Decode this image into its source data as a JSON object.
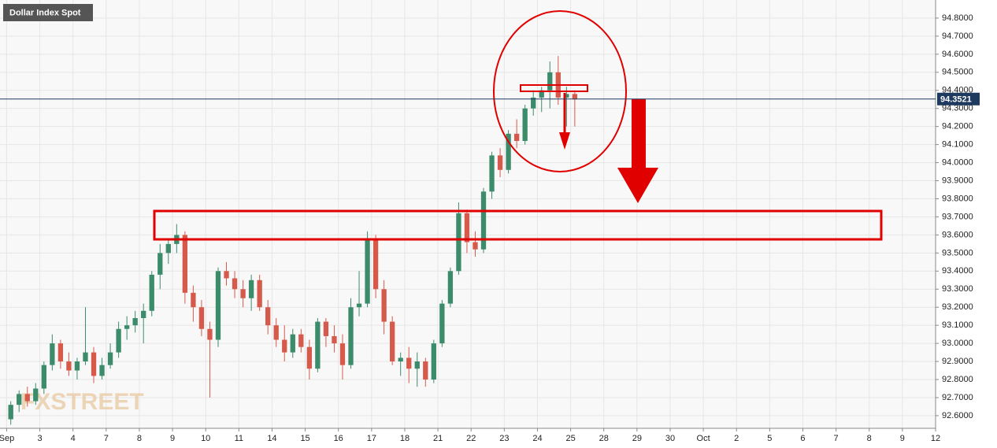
{
  "chart_data": {
    "type": "candlestick",
    "title": "Dollar Index Spot",
    "watermark": "FXSTREET",
    "xlim": [
      -0.2,
      28
    ],
    "xticks": [
      {
        "value": 0,
        "label": "Sep"
      },
      {
        "value": 1,
        "label": "3"
      },
      {
        "value": 2,
        "label": "4"
      },
      {
        "value": 3,
        "label": "7"
      },
      {
        "value": 4,
        "label": "8"
      },
      {
        "value": 5,
        "label": "9"
      },
      {
        "value": 6,
        "label": "10"
      },
      {
        "value": 7,
        "label": "11"
      },
      {
        "value": 8,
        "label": "14"
      },
      {
        "value": 9,
        "label": "15"
      },
      {
        "value": 10,
        "label": "16"
      },
      {
        "value": 11,
        "label": "17"
      },
      {
        "value": 12,
        "label": "18"
      },
      {
        "value": 13,
        "label": "21"
      },
      {
        "value": 14,
        "label": "22"
      },
      {
        "value": 15,
        "label": "23"
      },
      {
        "value": 16,
        "label": "24"
      },
      {
        "value": 17,
        "label": "25"
      },
      {
        "value": 18,
        "label": "28"
      },
      {
        "value": 19,
        "label": "29"
      },
      {
        "value": 20,
        "label": "30"
      },
      {
        "value": 21,
        "label": "Oct"
      },
      {
        "value": 22,
        "label": "2"
      },
      {
        "value": 23,
        "label": "5"
      },
      {
        "value": 24,
        "label": "6"
      },
      {
        "value": 25,
        "label": "7"
      },
      {
        "value": 26,
        "label": "8"
      },
      {
        "value": 27,
        "label": "9"
      },
      {
        "value": 28,
        "label": "12"
      }
    ],
    "ylim": [
      92.53,
      94.9
    ],
    "yticks": [
      {
        "value": 92.6,
        "label": "92.6000"
      },
      {
        "value": 92.7,
        "label": "92.7000"
      },
      {
        "value": 92.8,
        "label": "92.8000"
      },
      {
        "value": 92.9,
        "label": "92.9000"
      },
      {
        "value": 93.0,
        "label": "93.0000"
      },
      {
        "value": 93.1,
        "label": "93.1000"
      },
      {
        "value": 93.2,
        "label": "93.2000"
      },
      {
        "value": 93.3,
        "label": "93.3000"
      },
      {
        "value": 93.4,
        "label": "93.4000"
      },
      {
        "value": 93.5,
        "label": "93.5000"
      },
      {
        "value": 93.6,
        "label": "93.6000"
      },
      {
        "value": 93.7,
        "label": "93.7000"
      },
      {
        "value": 93.8,
        "label": "93.8000"
      },
      {
        "value": 93.9,
        "label": "93.9000"
      },
      {
        "value": 94.0,
        "label": "94.0000"
      },
      {
        "value": 94.1,
        "label": "94.1000"
      },
      {
        "value": 94.2,
        "label": "94.2000"
      },
      {
        "value": 94.3,
        "label": "94.3000"
      },
      {
        "value": 94.4,
        "label": "94.4000"
      },
      {
        "value": 94.5,
        "label": "94.5000"
      },
      {
        "value": 94.6,
        "label": "94.6000"
      },
      {
        "value": 94.7,
        "label": "94.7000"
      },
      {
        "value": 94.8,
        "label": "94.8000"
      }
    ],
    "grid": true,
    "up_color": "#3c8c6c",
    "down_color": "#d65a4c",
    "last_price": 94.3521,
    "last_price_color": "#1e3a5f",
    "x": [
      0.125,
      0.375,
      0.625,
      0.875,
      1.125,
      1.375,
      1.625,
      1.875,
      2.125,
      2.375,
      2.625,
      2.875,
      3.125,
      3.375,
      3.625,
      3.875,
      4.125,
      4.375,
      4.625,
      4.875,
      5.125,
      5.375,
      5.625,
      5.875,
      6.125,
      6.375,
      6.625,
      6.875,
      7.125,
      7.375,
      7.625,
      7.875,
      8.125,
      8.375,
      8.625,
      8.875,
      9.125,
      9.375,
      9.625,
      9.875,
      10.125,
      10.375,
      10.625,
      10.875,
      11.125,
      11.375,
      11.625,
      11.875,
      12.125,
      12.375,
      12.625,
      12.875,
      13.125,
      13.375,
      13.625,
      13.875,
      14.125,
      14.375,
      14.625,
      14.875,
      15.125,
      15.375,
      15.625,
      15.875,
      16.125,
      16.375,
      16.625,
      16.875,
      17.125
    ],
    "open": [
      92.58,
      92.66,
      92.72,
      92.68,
      92.75,
      92.88,
      93.0,
      92.9,
      92.85,
      92.9,
      92.95,
      92.82,
      92.88,
      92.95,
      93.08,
      93.1,
      93.14,
      93.18,
      93.38,
      93.5,
      93.55,
      93.6,
      93.28,
      93.2,
      93.08,
      93.02,
      93.4,
      93.36,
      93.3,
      93.25,
      93.35,
      93.2,
      93.1,
      93.02,
      92.95,
      93.05,
      92.98,
      92.86,
      93.12,
      93.04,
      93.0,
      92.88,
      93.2,
      93.22,
      93.58,
      93.3,
      93.12,
      92.9,
      92.92,
      92.86,
      92.9,
      92.8,
      93.0,
      93.22,
      93.4,
      93.72,
      93.56,
      93.52,
      93.84,
      94.04,
      93.96,
      94.16,
      94.12,
      94.3,
      94.36,
      94.4,
      94.5,
      94.36,
      94.38
    ],
    "high": [
      92.68,
      92.74,
      92.76,
      92.78,
      92.9,
      93.05,
      93.02,
      92.95,
      92.92,
      93.2,
      92.98,
      92.92,
      93.0,
      93.12,
      93.15,
      93.18,
      93.22,
      93.4,
      93.55,
      93.58,
      93.66,
      93.62,
      93.32,
      93.24,
      93.12,
      93.42,
      93.45,
      93.4,
      93.35,
      93.38,
      93.38,
      93.24,
      93.14,
      93.1,
      93.08,
      93.08,
      93.02,
      93.14,
      93.14,
      93.1,
      93.05,
      93.25,
      93.4,
      93.62,
      93.6,
      93.35,
      93.15,
      92.95,
      92.98,
      92.95,
      92.92,
      93.02,
      93.24,
      93.42,
      93.78,
      93.74,
      93.62,
      93.86,
      94.06,
      94.08,
      94.18,
      94.24,
      94.32,
      94.4,
      94.42,
      94.56,
      94.59,
      94.42,
      94.4
    ],
    "low": [
      92.55,
      92.62,
      92.65,
      92.66,
      92.72,
      92.85,
      92.86,
      92.82,
      92.8,
      92.88,
      92.78,
      92.8,
      92.86,
      92.92,
      93.02,
      93.06,
      93.0,
      93.15,
      93.3,
      93.44,
      93.5,
      93.22,
      93.12,
      93.04,
      92.7,
      92.98,
      93.32,
      93.25,
      93.2,
      93.18,
      93.18,
      93.05,
      92.98,
      92.9,
      92.92,
      92.95,
      92.8,
      92.84,
      92.98,
      92.95,
      92.8,
      92.86,
      93.15,
      93.2,
      93.25,
      93.05,
      92.88,
      92.82,
      92.78,
      92.76,
      92.76,
      92.78,
      92.98,
      93.2,
      93.38,
      93.5,
      93.48,
      93.5,
      93.8,
      93.92,
      93.94,
      94.08,
      94.1,
      94.26,
      94.28,
      94.3,
      94.32,
      94.2,
      94.2
    ],
    "close": [
      92.66,
      92.72,
      92.68,
      92.75,
      92.88,
      93.0,
      92.9,
      92.85,
      92.9,
      92.95,
      92.82,
      92.88,
      92.95,
      93.08,
      93.1,
      93.14,
      93.18,
      93.38,
      93.5,
      93.55,
      93.6,
      93.28,
      93.2,
      93.08,
      93.02,
      93.4,
      93.36,
      93.3,
      93.25,
      93.35,
      93.2,
      93.1,
      93.02,
      92.95,
      93.05,
      92.98,
      92.86,
      93.12,
      93.04,
      93.0,
      92.88,
      93.2,
      93.22,
      93.58,
      93.3,
      93.12,
      92.9,
      92.92,
      92.86,
      92.9,
      92.8,
      93.0,
      93.22,
      93.4,
      93.72,
      93.56,
      93.52,
      93.84,
      94.04,
      93.96,
      94.16,
      94.12,
      94.3,
      94.36,
      94.4,
      94.5,
      94.36,
      94.38,
      94.35
    ]
  }
}
